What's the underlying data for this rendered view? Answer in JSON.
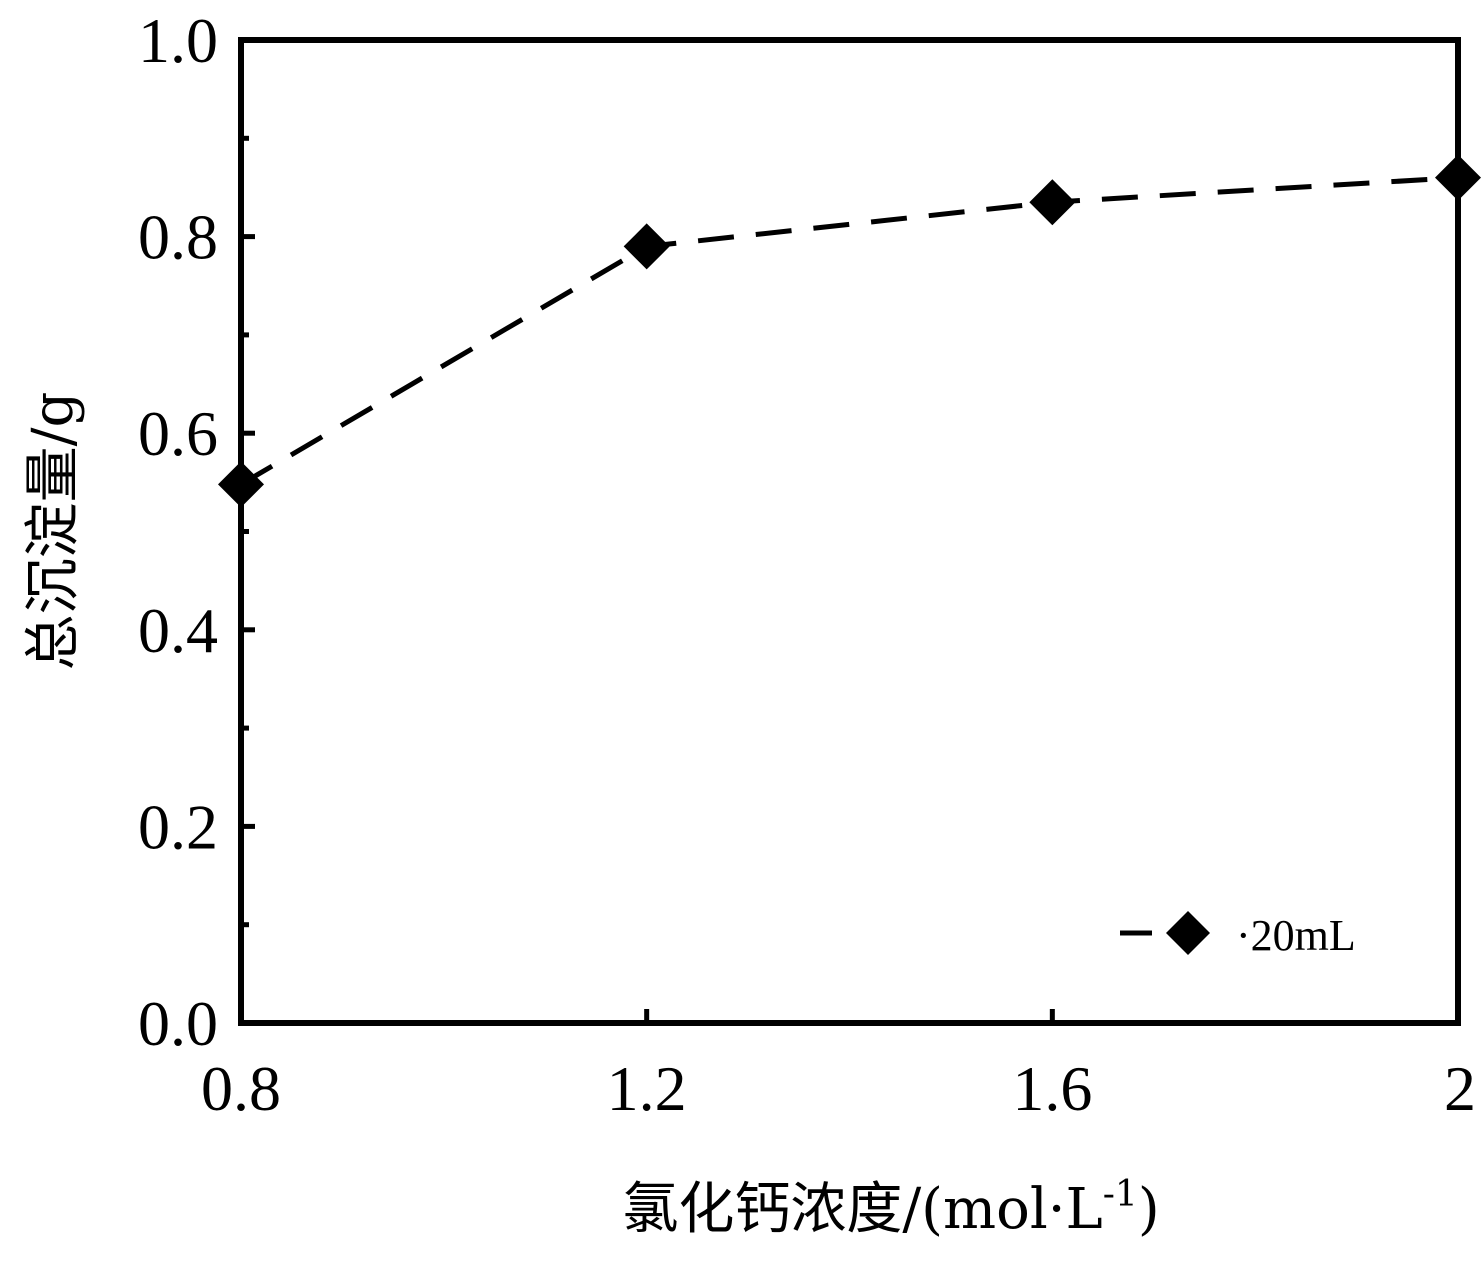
{
  "chart_data": {
    "type": "line",
    "xlabel": "氯化钙浓度/(mol·L",
    "xlabel_sup": "-1",
    "xlabel_suffix": ")",
    "ylabel": "总沉淀量/g",
    "xlim": [
      0.8,
      2.0
    ],
    "ylim": [
      0.0,
      1.0
    ],
    "x_ticks": [
      0.8,
      1.2,
      1.6,
      2.0
    ],
    "x_tick_labels": [
      "0.8",
      "1.2",
      "1.6",
      "2"
    ],
    "y_ticks": [
      0.0,
      0.2,
      0.4,
      0.6,
      0.8,
      1.0
    ],
    "y_tick_labels": [
      "0.0",
      "0.2",
      "0.4",
      "0.6",
      "0.8",
      "1.0"
    ],
    "y_minor_ticks": [
      0.1,
      0.3,
      0.5,
      0.7,
      0.9
    ],
    "grid": false,
    "legend_position": "bottom-right",
    "series": [
      {
        "name": "·20mL",
        "x": [
          0.8,
          1.2,
          1.6,
          2.0
        ],
        "y": [
          0.548,
          0.79,
          0.835,
          0.86
        ],
        "line_style": "dashed",
        "marker": "diamond",
        "color": "#000000"
      }
    ]
  }
}
